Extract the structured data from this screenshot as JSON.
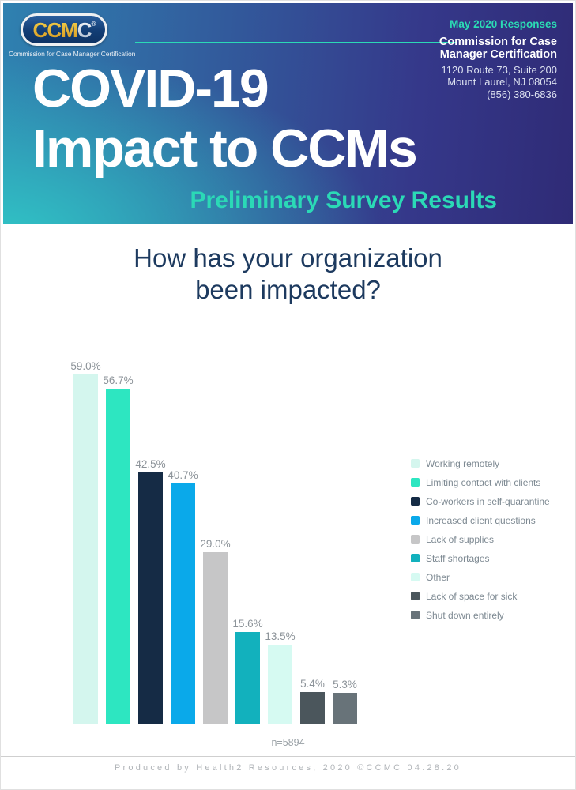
{
  "header": {
    "logo": {
      "text_gold": "CCM",
      "text_silver": "C",
      "reg": "®",
      "caption": "Commission for Case Manager Certification"
    },
    "badge": "May 2020 Responses",
    "org_line1": "Commission for Case",
    "org_line2": "Manager Certification",
    "address_line1": "1120 Route 73, Suite 200",
    "address_line2": "Mount Laurel, NJ 08054",
    "phone": "(856) 380-6836",
    "title_line1": "COVID-19",
    "title_line2": "Impact to CCMs",
    "subtitle": "Preliminary Survey Results",
    "accent_color": "#2bd9b6"
  },
  "main": {
    "question": "How has your organization been impacted?"
  },
  "chart_data": {
    "type": "bar",
    "title": "How has your organization been impacted?",
    "categories": [
      "Working remotely",
      "Limiting contact with clients",
      "Co-workers in self-quarantine",
      "Increased client questions",
      "Lack of supplies",
      "Staff shortages",
      "Other",
      "Lack of space for sick",
      "Shut down entirely"
    ],
    "values": [
      59.0,
      56.7,
      42.5,
      40.7,
      29.0,
      15.6,
      13.5,
      5.4,
      5.3
    ],
    "value_labels": [
      "59.0%",
      "56.7%",
      "42.5%",
      "40.7%",
      "29.0%",
      "15.6%",
      "13.5%",
      "5.4%",
      "5.3%"
    ],
    "bar_colors": [
      "#d4f6ee",
      "#2de6c1",
      "#152b45",
      "#0aa9ea",
      "#c6c6c7",
      "#12b1bd",
      "#d6faf2",
      "#4b565c",
      "#687379"
    ],
    "sample_size": "n=5894",
    "xlabel": "",
    "ylabel": "",
    "ylim": [
      0,
      60
    ],
    "grid": false,
    "axes_visible": false,
    "legend_position": "right"
  },
  "footer": {
    "credit": "Produced by Health2 Resources, 2020 ©CCMC 04.28.20"
  }
}
